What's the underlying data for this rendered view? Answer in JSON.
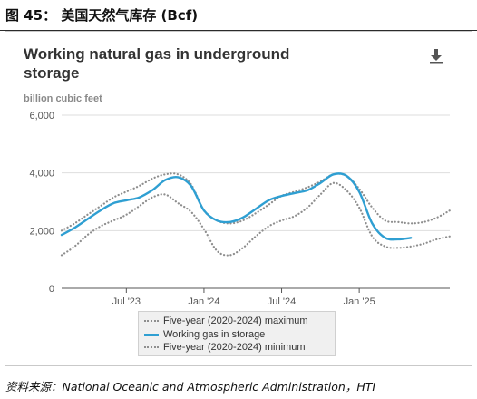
{
  "figure": {
    "title": "图 45：  美国天然气库存 (Bcf)",
    "source": "资料来源：National Oceanic and Atmospheric Administration，HTI"
  },
  "icons": {
    "download": "download-icon",
    "download_color": "#555555"
  },
  "chart_data": {
    "type": "line",
    "title": "Working natural gas in underground storage",
    "ylabel": "billion cubic feet",
    "xlabel": "",
    "ylim": [
      0,
      6000
    ],
    "yticks": [
      0,
      2000,
      4000,
      6000
    ],
    "ytick_labels": [
      "0",
      "2,000",
      "4,000",
      "6,000"
    ],
    "xlim": [
      "2023-02",
      "2025-08"
    ],
    "xticks": [
      "2023-07",
      "2024-01",
      "2024-07",
      "2025-01"
    ],
    "xtick_labels": [
      "Jul '23",
      "Jan '24",
      "Jul '24",
      "Jan '25"
    ],
    "grid": "horizontal",
    "legend_position": "bottom",
    "series": [
      {
        "name": "Five-year (2020-2024) maximum",
        "style": "dotted",
        "color": "#8e8e8e",
        "x": [
          "2023-02",
          "2023-03",
          "2023-04",
          "2023-05",
          "2023-06",
          "2023-07",
          "2023-08",
          "2023-09",
          "2023-10",
          "2023-11",
          "2023-12",
          "2024-01",
          "2024-02",
          "2024-03",
          "2024-04",
          "2024-05",
          "2024-06",
          "2024-07",
          "2024-08",
          "2024-09",
          "2024-10",
          "2024-11",
          "2024-12",
          "2025-01",
          "2025-02",
          "2025-03",
          "2025-04",
          "2025-05",
          "2025-06",
          "2025-07",
          "2025-08"
        ],
        "y": [
          2000,
          2250,
          2550,
          2850,
          3150,
          3350,
          3550,
          3800,
          3950,
          3950,
          3600,
          2700,
          2350,
          2250,
          2350,
          2600,
          2900,
          3200,
          3350,
          3500,
          3700,
          3950,
          3900,
          3450,
          2800,
          2350,
          2300,
          2250,
          2300,
          2450,
          2700
        ]
      },
      {
        "name": "Working gas in storage",
        "style": "solid",
        "color": "#2f9fd2",
        "x": [
          "2023-02",
          "2023-03",
          "2023-04",
          "2023-05",
          "2023-06",
          "2023-07",
          "2023-08",
          "2023-09",
          "2023-10",
          "2023-11",
          "2023-12",
          "2024-01",
          "2024-02",
          "2024-03",
          "2024-04",
          "2024-05",
          "2024-06",
          "2024-07",
          "2024-08",
          "2024-09",
          "2024-10",
          "2024-11",
          "2024-12",
          "2025-01",
          "2025-02",
          "2025-03",
          "2025-04",
          "2025-05"
        ],
        "y": [
          1850,
          2100,
          2400,
          2700,
          2950,
          3050,
          3150,
          3400,
          3750,
          3850,
          3550,
          2700,
          2350,
          2300,
          2450,
          2750,
          3050,
          3200,
          3300,
          3400,
          3650,
          3950,
          3900,
          3350,
          2250,
          1750,
          1700,
          1750
        ]
      },
      {
        "name": "Five-year (2020-2024) minimum",
        "style": "dotted",
        "color": "#8e8e8e",
        "x": [
          "2023-02",
          "2023-03",
          "2023-04",
          "2023-05",
          "2023-06",
          "2023-07",
          "2023-08",
          "2023-09",
          "2023-10",
          "2023-11",
          "2023-12",
          "2024-01",
          "2024-02",
          "2024-03",
          "2024-04",
          "2024-05",
          "2024-06",
          "2024-07",
          "2024-08",
          "2024-09",
          "2024-10",
          "2024-11",
          "2024-12",
          "2025-01",
          "2025-02",
          "2025-03",
          "2025-04",
          "2025-05",
          "2025-06",
          "2025-07",
          "2025-08"
        ],
        "y": [
          1150,
          1450,
          1850,
          2150,
          2350,
          2550,
          2850,
          3150,
          3250,
          2950,
          2650,
          2050,
          1300,
          1150,
          1400,
          1800,
          2150,
          2350,
          2500,
          2800,
          3250,
          3650,
          3400,
          2800,
          1800,
          1450,
          1400,
          1450,
          1550,
          1700,
          1800
        ]
      }
    ]
  }
}
